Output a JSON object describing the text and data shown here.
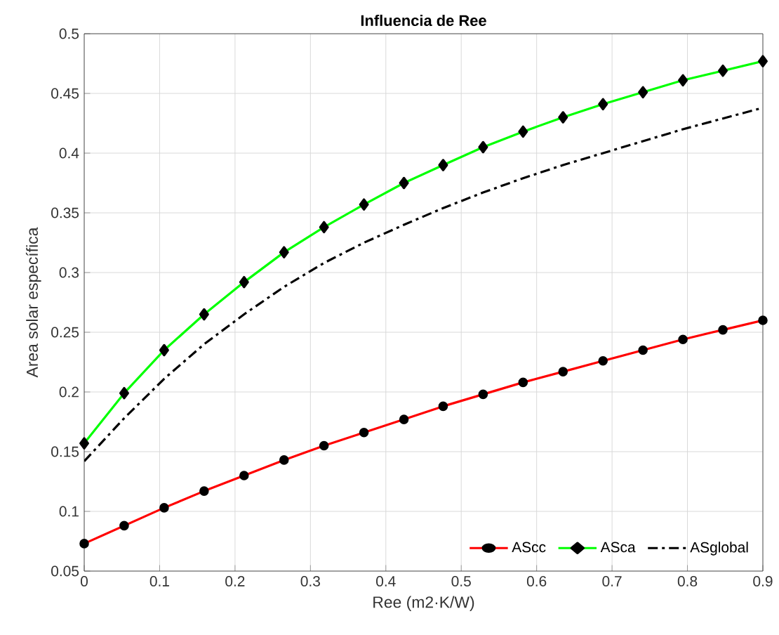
{
  "chart_data": {
    "type": "line",
    "title": "Influencia de Ree",
    "xlabel": "Ree (m2·K/W)",
    "ylabel": "Area solar específica",
    "x": [
      0,
      0.053,
      0.106,
      0.159,
      0.212,
      0.265,
      0.318,
      0.371,
      0.424,
      0.476,
      0.529,
      0.582,
      0.635,
      0.688,
      0.741,
      0.794,
      0.847,
      0.9
    ],
    "series": [
      {
        "name": "AScc",
        "color": "#ff0000",
        "marker": "circle",
        "line_style": "solid",
        "values": [
          0.073,
          0.088,
          0.103,
          0.117,
          0.13,
          0.143,
          0.155,
          0.166,
          0.177,
          0.188,
          0.198,
          0.208,
          0.217,
          0.226,
          0.235,
          0.244,
          0.252,
          0.26
        ]
      },
      {
        "name": "ASca",
        "color": "#00ff00",
        "marker": "diamond",
        "line_style": "solid",
        "values": [
          0.157,
          0.199,
          0.235,
          0.265,
          0.292,
          0.317,
          0.338,
          0.357,
          0.375,
          0.39,
          0.405,
          0.418,
          0.43,
          0.441,
          0.451,
          0.461,
          0.469,
          0.477
        ]
      },
      {
        "name": "ASglobal",
        "color": "#000000",
        "marker": "none",
        "line_style": "dashdot",
        "values": [
          0.142,
          0.178,
          0.211,
          0.24,
          0.265,
          0.288,
          0.308,
          0.325,
          0.34,
          0.354,
          0.367,
          0.379,
          0.39,
          0.4,
          0.41,
          0.42,
          0.429,
          0.438
        ]
      }
    ],
    "xlim": [
      0,
      0.9
    ],
    "ylim": [
      0.05,
      0.5
    ],
    "xticks": [
      0,
      0.1,
      0.2,
      0.3,
      0.4,
      0.5,
      0.6,
      0.7,
      0.8,
      0.9
    ],
    "yticks": [
      0.05,
      0.1,
      0.15,
      0.2,
      0.25,
      0.3,
      0.35,
      0.4,
      0.45,
      0.5
    ],
    "grid": true,
    "legend": "bottom right"
  }
}
